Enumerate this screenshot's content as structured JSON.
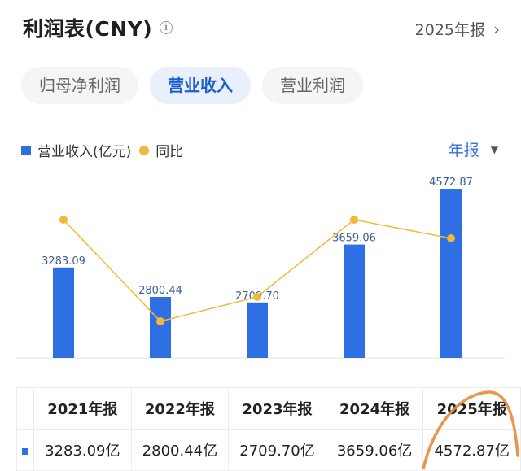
{
  "header": {
    "title": "利润表(CNY)",
    "info_icon": "info-circle-icon",
    "period_label": "2025年报",
    "chevron_icon": "chevron-right-icon"
  },
  "tabs": [
    {
      "label": "归母净利润",
      "active": false
    },
    {
      "label": "营业收入",
      "active": true
    },
    {
      "label": "营业利润",
      "active": false
    }
  ],
  "legend": {
    "bar_label": "营业收入(亿元)",
    "line_label": "同比"
  },
  "period_select": {
    "label": "年报",
    "caret_icon": "caret-down-icon"
  },
  "colors": {
    "bar": "#2f6fe4",
    "line": "#f2b83a",
    "active_tab": "#1e5fd0",
    "annotation": "#e68a3a"
  },
  "chart_data": {
    "type": "bar",
    "categories": [
      "2021年报",
      "2022年报",
      "2023年报",
      "2024年报",
      "2025年报"
    ],
    "series": [
      {
        "name": "营业收入(亿元)",
        "type": "bar",
        "values": [
          3283.09,
          2800.44,
          2709.7,
          3659.06,
          4572.87
        ]
      },
      {
        "name": "同比",
        "type": "line",
        "values": [
          null,
          null,
          null,
          null,
          null
        ],
        "note_shape": "line with markers, no labels shown"
      }
    ],
    "value_labels": [
      "3283.09",
      "2800.44",
      "2709.70",
      "3659.06",
      "4572.87"
    ],
    "ylim": [
      0,
      5000
    ],
    "grid": false
  },
  "table": {
    "headers": [
      "2021年报",
      "2022年报",
      "2023年报",
      "2024年报",
      "2025年报"
    ],
    "row": [
      "3283.09亿",
      "2800.44亿",
      "2709.70亿",
      "3659.06亿",
      "4572.87亿"
    ]
  }
}
